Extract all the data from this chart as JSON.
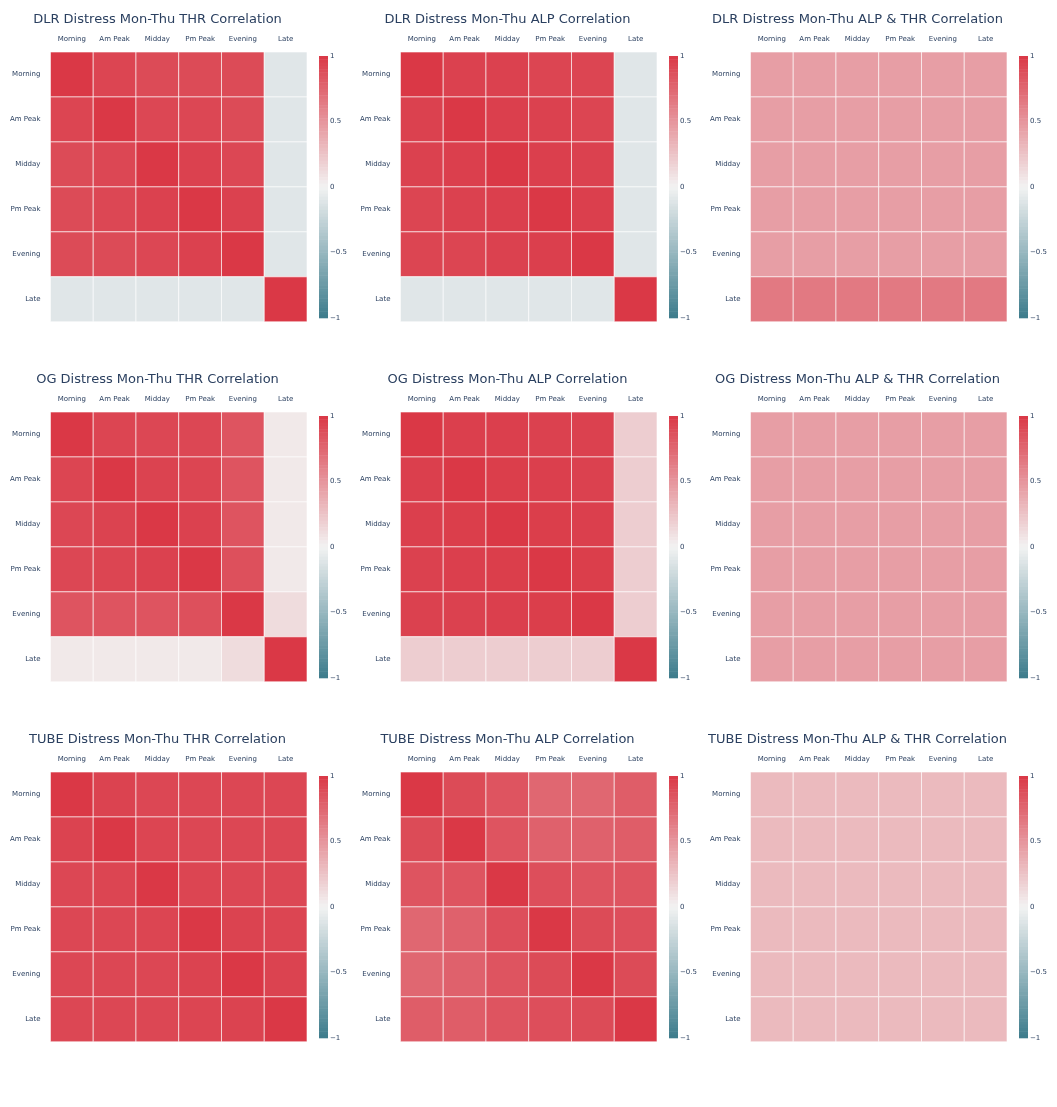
{
  "chart_data": [
    {
      "type": "heatmap",
      "title": "DLR Distress Mon-Thu THR Correlation",
      "categories": [
        "Morning",
        "Am Peak",
        "Midday",
        "Pm Peak",
        "Evening",
        "Late"
      ],
      "y_categories": [
        "Morning",
        "Am Peak",
        "Midday",
        "Pm Peak",
        "Evening",
        "Late"
      ],
      "clim": [
        -1,
        1
      ],
      "cticks": [
        -1,
        -0.5,
        0,
        0.5,
        1
      ],
      "cells": [
        [
          1,
          0.93,
          0.9,
          0.9,
          0.9,
          -0.1
        ],
        [
          0.93,
          1,
          0.92,
          0.92,
          0.9,
          -0.1
        ],
        [
          0.9,
          0.92,
          1,
          0.95,
          0.92,
          -0.1
        ],
        [
          0.9,
          0.92,
          0.95,
          1,
          0.95,
          -0.1
        ],
        [
          0.9,
          0.9,
          0.92,
          0.95,
          1,
          -0.1
        ],
        [
          -0.1,
          -0.1,
          -0.1,
          -0.1,
          -0.1,
          1
        ]
      ]
    },
    {
      "type": "heatmap",
      "title": "DLR Distress Mon-Thu ALP Correlation",
      "categories": [
        "Morning",
        "Am Peak",
        "Midday",
        "Pm Peak",
        "Evening",
        "Late"
      ],
      "y_categories": [
        "Morning",
        "Am Peak",
        "Midday",
        "Pm Peak",
        "Evening",
        "Late"
      ],
      "clim": [
        -1,
        1
      ],
      "cticks": [
        -1,
        -0.5,
        0,
        0.5,
        1
      ],
      "cells": [
        [
          1,
          0.95,
          0.95,
          0.93,
          0.93,
          -0.1
        ],
        [
          0.95,
          1,
          0.96,
          0.95,
          0.93,
          -0.1
        ],
        [
          0.95,
          0.96,
          1,
          0.96,
          0.95,
          -0.1
        ],
        [
          0.93,
          0.95,
          0.96,
          1,
          0.96,
          -0.1
        ],
        [
          0.93,
          0.93,
          0.95,
          0.96,
          1,
          -0.1
        ],
        [
          -0.1,
          -0.1,
          -0.1,
          -0.1,
          -0.1,
          1
        ]
      ]
    },
    {
      "type": "heatmap",
      "title": "DLR Distress Mon-Thu ALP & THR Correlation",
      "categories": [
        "Morning",
        "Am Peak",
        "Midday",
        "Pm Peak",
        "Evening",
        "Late"
      ],
      "y_categories": [
        "Morning",
        "Am Peak",
        "Midday",
        "Pm Peak",
        "Evening",
        "Late"
      ],
      "clim": [
        -1,
        1
      ],
      "cticks": [
        -1,
        -0.5,
        0,
        0.5,
        1
      ],
      "cells": [
        [
          0.45,
          0.45,
          0.45,
          0.45,
          0.45,
          0.45
        ],
        [
          0.45,
          0.45,
          0.45,
          0.45,
          0.45,
          0.45
        ],
        [
          0.45,
          0.45,
          0.45,
          0.45,
          0.45,
          0.45
        ],
        [
          0.45,
          0.45,
          0.45,
          0.45,
          0.45,
          0.45
        ],
        [
          0.45,
          0.45,
          0.45,
          0.45,
          0.45,
          0.45
        ],
        [
          0.65,
          0.65,
          0.65,
          0.65,
          0.65,
          0.65
        ]
      ]
    },
    {
      "type": "heatmap",
      "title": "OG Distress Mon-Thu THR Correlation",
      "categories": [
        "Morning",
        "Am Peak",
        "Midday",
        "Pm Peak",
        "Evening",
        "Late"
      ],
      "y_categories": [
        "Morning",
        "Am Peak",
        "Midday",
        "Pm Peak",
        "Evening",
        "Late"
      ],
      "clim": [
        -1,
        1
      ],
      "cticks": [
        -1,
        -0.5,
        0,
        0.5,
        1
      ],
      "cells": [
        [
          1,
          0.93,
          0.92,
          0.92,
          0.85,
          0.05
        ],
        [
          0.93,
          1,
          0.94,
          0.93,
          0.85,
          0.05
        ],
        [
          0.92,
          0.94,
          1,
          0.95,
          0.85,
          0.05
        ],
        [
          0.92,
          0.93,
          0.95,
          1,
          0.87,
          0.05
        ],
        [
          0.85,
          0.85,
          0.85,
          0.87,
          1,
          0.12
        ],
        [
          0.05,
          0.05,
          0.05,
          0.05,
          0.12,
          1
        ]
      ]
    },
    {
      "type": "heatmap",
      "title": "OG Distress Mon-Thu ALP Correlation",
      "categories": [
        "Morning",
        "Am Peak",
        "Midday",
        "Pm Peak",
        "Evening",
        "Late"
      ],
      "y_categories": [
        "Morning",
        "Am Peak",
        "Midday",
        "Pm Peak",
        "Evening",
        "Late"
      ],
      "clim": [
        -1,
        1
      ],
      "cticks": [
        -1,
        -0.5,
        0,
        0.5,
        1
      ],
      "cells": [
        [
          1,
          0.96,
          0.96,
          0.95,
          0.95,
          0.2
        ],
        [
          0.96,
          1,
          0.97,
          0.96,
          0.95,
          0.2
        ],
        [
          0.96,
          0.97,
          1,
          0.97,
          0.96,
          0.2
        ],
        [
          0.95,
          0.96,
          0.97,
          1,
          0.97,
          0.2
        ],
        [
          0.95,
          0.95,
          0.96,
          0.97,
          1,
          0.2
        ],
        [
          0.2,
          0.2,
          0.2,
          0.2,
          0.2,
          1
        ]
      ]
    },
    {
      "type": "heatmap",
      "title": "OG Distress Mon-Thu ALP & THR Correlation",
      "categories": [
        "Morning",
        "Am Peak",
        "Midday",
        "Pm Peak",
        "Evening",
        "Late"
      ],
      "y_categories": [
        "Morning",
        "Am Peak",
        "Midday",
        "Pm Peak",
        "Evening",
        "Late"
      ],
      "clim": [
        -1,
        1
      ],
      "cticks": [
        -1,
        -0.5,
        0,
        0.5,
        1
      ],
      "cells": [
        [
          0.45,
          0.45,
          0.45,
          0.45,
          0.45,
          0.45
        ],
        [
          0.45,
          0.45,
          0.45,
          0.45,
          0.45,
          0.45
        ],
        [
          0.45,
          0.45,
          0.45,
          0.45,
          0.45,
          0.45
        ],
        [
          0.45,
          0.45,
          0.45,
          0.45,
          0.45,
          0.45
        ],
        [
          0.45,
          0.45,
          0.45,
          0.45,
          0.45,
          0.45
        ],
        [
          0.45,
          0.45,
          0.45,
          0.45,
          0.45,
          0.45
        ]
      ]
    },
    {
      "type": "heatmap",
      "title": "TUBE Distress Mon-Thu THR Correlation",
      "categories": [
        "Morning",
        "Am Peak",
        "Midday",
        "Pm Peak",
        "Evening",
        "Late"
      ],
      "y_categories": [
        "Morning",
        "Am Peak",
        "Midday",
        "Pm Peak",
        "Evening",
        "Late"
      ],
      "clim": [
        -1,
        1
      ],
      "cticks": [
        -1,
        -0.5,
        0,
        0.5,
        1
      ],
      "cells": [
        [
          1,
          0.94,
          0.92,
          0.92,
          0.92,
          0.92
        ],
        [
          0.94,
          1,
          0.93,
          0.92,
          0.92,
          0.92
        ],
        [
          0.92,
          0.93,
          1,
          0.93,
          0.92,
          0.92
        ],
        [
          0.92,
          0.92,
          0.93,
          1,
          0.94,
          0.93
        ],
        [
          0.92,
          0.92,
          0.92,
          0.94,
          1,
          0.94
        ],
        [
          0.92,
          0.92,
          0.92,
          0.93,
          0.94,
          1
        ]
      ]
    },
    {
      "type": "heatmap",
      "title": "TUBE Distress Mon-Thu ALP Correlation",
      "categories": [
        "Morning",
        "Am Peak",
        "Midday",
        "Pm Peak",
        "Evening",
        "Late"
      ],
      "y_categories": [
        "Morning",
        "Am Peak",
        "Midday",
        "Pm Peak",
        "Evening",
        "Late"
      ],
      "clim": [
        -1,
        1
      ],
      "cticks": [
        -1,
        -0.5,
        0,
        0.5,
        1
      ],
      "cells": [
        [
          1,
          0.9,
          0.85,
          0.75,
          0.75,
          0.8
        ],
        [
          0.9,
          1,
          0.85,
          0.78,
          0.78,
          0.8
        ],
        [
          0.85,
          0.85,
          1,
          0.88,
          0.85,
          0.85
        ],
        [
          0.75,
          0.78,
          0.88,
          1,
          0.9,
          0.88
        ],
        [
          0.75,
          0.78,
          0.85,
          0.9,
          1,
          0.9
        ],
        [
          0.8,
          0.8,
          0.85,
          0.88,
          0.9,
          1
        ]
      ]
    },
    {
      "type": "heatmap",
      "title": "TUBE Distress Mon-Thu ALP & THR Correlation",
      "categories": [
        "Morning",
        "Am Peak",
        "Midday",
        "Pm Peak",
        "Evening",
        "Late"
      ],
      "y_categories": [
        "Morning",
        "Am Peak",
        "Midday",
        "Pm Peak",
        "Evening",
        "Late"
      ],
      "clim": [
        -1,
        1
      ],
      "cticks": [
        -1,
        -0.5,
        0,
        0.5,
        1
      ],
      "cells": [
        [
          0.3,
          0.3,
          0.3,
          0.3,
          0.3,
          0.3
        ],
        [
          0.3,
          0.3,
          0.3,
          0.3,
          0.3,
          0.3
        ],
        [
          0.3,
          0.3,
          0.3,
          0.3,
          0.3,
          0.3
        ],
        [
          0.3,
          0.3,
          0.3,
          0.3,
          0.3,
          0.3
        ],
        [
          0.3,
          0.3,
          0.3,
          0.3,
          0.3,
          0.3
        ],
        [
          0.3,
          0.3,
          0.3,
          0.3,
          0.3,
          0.3
        ]
      ]
    }
  ]
}
